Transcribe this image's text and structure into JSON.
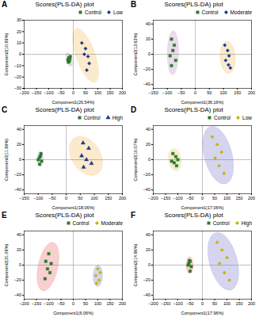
{
  "chart_data": [
    {
      "type": "scatter",
      "title": "Scores(PLS-DA) plot",
      "annotations": [
        "A"
      ],
      "xlabel": "Component1(26.54%)",
      "ylabel": "Component2(10.69%)",
      "xlim": [
        -200,
        200
      ],
      "ylim": [
        -30,
        30
      ],
      "xticks": [
        -200,
        -150,
        -100,
        -50,
        0,
        50,
        100,
        150,
        200
      ],
      "yticks": [
        -30,
        -20,
        -10,
        0,
        10,
        20,
        30
      ],
      "hlines": [
        0
      ],
      "vlines": [
        0
      ],
      "legend": "upper right",
      "grid": false,
      "series": [
        {
          "name": "Control",
          "color": "#2d7a2d",
          "marker": "square",
          "points": [
            [
              -18,
              -3
            ],
            [
              -22,
              -5
            ],
            [
              -16,
              -6
            ],
            [
              -20,
              -7
            ],
            [
              -14,
              -4
            ],
            [
              -12,
              -2
            ]
          ],
          "ellipse": {
            "cx": -17,
            "cy": -4.5,
            "width": 28,
            "height": 10,
            "angle": -15,
            "color": "#c8a0d0"
          }
        },
        {
          "name": "Low",
          "color": "#1a3a8a",
          "marker": "diamond",
          "points": [
            [
              35,
              10
            ],
            [
              50,
              5
            ],
            [
              60,
              -2
            ],
            [
              45,
              0
            ],
            [
              65,
              -8
            ],
            [
              55,
              -14
            ]
          ],
          "ellipse": {
            "cx": 50,
            "cy": -1,
            "width": 110,
            "height": 35,
            "angle": -18,
            "color": "#f5c87a"
          }
        }
      ]
    },
    {
      "type": "scatter",
      "title": "Scores(PLS-DA) plot",
      "annotations": [
        "B"
      ],
      "xlabel": "Component1(36.16%)",
      "ylabel": "Component2(13.63%)",
      "xlim": [
        -150,
        200
      ],
      "ylim": [
        -45,
        45
      ],
      "xticks": [
        -150,
        -100,
        -50,
        0,
        50,
        100,
        150,
        200
      ],
      "yticks": [
        -40,
        -20,
        0,
        20,
        40
      ],
      "hlines": [
        0
      ],
      "vlines": [
        0
      ],
      "legend": "upper right",
      "grid": false,
      "series": [
        {
          "name": "Control",
          "color": "#2d7a2d",
          "marker": "square",
          "points": [
            [
              -85,
              20
            ],
            [
              -75,
              12
            ],
            [
              -80,
              5
            ],
            [
              -90,
              -2
            ],
            [
              -70,
              -8
            ],
            [
              -85,
              -15
            ]
          ],
          "ellipse": {
            "cx": -80,
            "cy": 2,
            "width": 40,
            "height": 58,
            "angle": -5,
            "color": "#c8a0d0"
          }
        },
        {
          "name": "Moderate",
          "color": "#1a3a8a",
          "marker": "diamond",
          "points": [
            [
              105,
              12
            ],
            [
              115,
              5
            ],
            [
              120,
              -2
            ],
            [
              108,
              -8
            ],
            [
              118,
              -14
            ],
            [
              125,
              -18
            ]
          ],
          "ellipse": {
            "cx": 115,
            "cy": -4,
            "width": 55,
            "height": 42,
            "angle": -12,
            "color": "#f5c87a"
          }
        }
      ]
    },
    {
      "type": "scatter",
      "title": "Scores(PLS-DA) plot",
      "annotations": [
        "C"
      ],
      "xlabel": "Component1(18.06%)",
      "ylabel": "Component2(11.96%)",
      "xlim": [
        -150,
        200
      ],
      "ylim": [
        -45,
        45
      ],
      "xticks": [
        -150,
        -100,
        -50,
        0,
        50,
        100,
        150,
        200
      ],
      "yticks": [
        -40,
        -20,
        0,
        20,
        40
      ],
      "hlines": [
        0
      ],
      "vlines": [
        0
      ],
      "legend": "upper right",
      "grid": false,
      "series": [
        {
          "name": "Control",
          "color": "#2d7a2d",
          "marker": "square",
          "points": [
            [
              -90,
              8
            ],
            [
              -95,
              3
            ],
            [
              -100,
              0
            ],
            [
              -88,
              -2
            ],
            [
              -95,
              -6
            ],
            [
              -92,
              5
            ]
          ],
          "ellipse": {
            "cx": -93,
            "cy": 1,
            "width": 22,
            "height": 20,
            "angle": 0,
            "color": "#c8a0d0"
          }
        },
        {
          "name": "High",
          "color": "#1a3a8a",
          "marker": "triangle",
          "points": [
            [
              60,
              22
            ],
            [
              80,
              15
            ],
            [
              55,
              5
            ],
            [
              72,
              0
            ],
            [
              90,
              -5
            ],
            [
              62,
              -10
            ]
          ],
          "ellipse": {
            "cx": 70,
            "cy": 5,
            "width": 120,
            "height": 48,
            "angle": -10,
            "color": "#f5c87a"
          }
        }
      ]
    },
    {
      "type": "scatter",
      "title": "Scores(PLS-DA) plot",
      "annotations": [
        "D"
      ],
      "xlabel": "Component1(17.06%)",
      "ylabel": "Component2(10.07%)",
      "xlim": [
        -200,
        200
      ],
      "ylim": [
        -45,
        45
      ],
      "xticks": [
        -200,
        -150,
        -100,
        -50,
        0,
        50,
        100,
        150,
        200
      ],
      "yticks": [
        -40,
        -20,
        0,
        20,
        40
      ],
      "hlines": [
        0
      ],
      "vlines": [
        0
      ],
      "legend": "upper right",
      "grid": false,
      "series": [
        {
          "name": "Control",
          "color": "#2d7a2d",
          "marker": "square",
          "points": [
            [
              -120,
              8
            ],
            [
              -108,
              4
            ],
            [
              -100,
              0
            ],
            [
              -115,
              -4
            ],
            [
              -105,
              -8
            ],
            [
              -125,
              -2
            ]
          ],
          "ellipse": {
            "cx": -112,
            "cy": 0,
            "width": 52,
            "height": 28,
            "angle": -8,
            "color": "#e0d070"
          }
        },
        {
          "name": "Low",
          "color": "#c8b400",
          "marker": "diamond",
          "points": [
            [
              40,
              30
            ],
            [
              60,
              20
            ],
            [
              78,
              10
            ],
            [
              52,
              2
            ],
            [
              68,
              -8
            ],
            [
              88,
              -18
            ]
          ],
          "ellipse": {
            "cx": 64,
            "cy": 6,
            "width": 130,
            "height": 68,
            "angle": -18,
            "color": "#9090d8"
          }
        }
      ]
    },
    {
      "type": "scatter",
      "title": "Scores(PLS-DA) plot",
      "annotations": [
        "E"
      ],
      "xlabel": "Component1(6.06%)",
      "ylabel": "Component2(31.09%)",
      "xlim": [
        -200,
        200
      ],
      "ylim": [
        -45,
        45
      ],
      "xticks": [
        -200,
        -150,
        -100,
        -50,
        0,
        50,
        100,
        150,
        200
      ],
      "yticks": [
        -40,
        -20,
        0,
        20,
        40
      ],
      "hlines": [
        0
      ],
      "vlines": [
        0
      ],
      "legend": "upper right",
      "grid": false,
      "series": [
        {
          "name": "Control",
          "color": "#2d7a2d",
          "marker": "square",
          "points": [
            [
              -100,
              15
            ],
            [
              -112,
              5
            ],
            [
              -90,
              2
            ],
            [
              -105,
              -5
            ],
            [
              -95,
              -10
            ],
            [
              -115,
              -18
            ]
          ],
          "ellipse": {
            "cx": -103,
            "cy": -2,
            "width": 55,
            "height": 95,
            "angle": -65,
            "color": "#f08080"
          }
        },
        {
          "name": "Moderate",
          "color": "#c8b400",
          "marker": "diamond",
          "points": [
            [
              100,
              -5
            ],
            [
              110,
              -10
            ],
            [
              92,
              -14
            ],
            [
              105,
              -20
            ],
            [
              95,
              -24
            ]
          ],
          "ellipse": {
            "cx": 100,
            "cy": -14,
            "width": 38,
            "height": 28,
            "angle": 5,
            "color": "#9090d8"
          }
        }
      ]
    },
    {
      "type": "scatter",
      "title": "Scores(PLS-DA) plot",
      "annotations": [
        "F"
      ],
      "xlabel": "Component1(17.96%)",
      "ylabel": "Component2(14.96%)",
      "xlim": [
        -200,
        200
      ],
      "ylim": [
        -45,
        45
      ],
      "xticks": [
        -200,
        -150,
        -100,
        -50,
        0,
        50,
        100,
        150,
        200
      ],
      "yticks": [
        -40,
        -20,
        0,
        20,
        40
      ],
      "hlines": [
        0
      ],
      "vlines": [
        0
      ],
      "legend": "upper right",
      "grid": false,
      "series": [
        {
          "name": "Control",
          "color": "#2d7a2d",
          "marker": "square",
          "points": [
            [
              -50,
              5
            ],
            [
              -55,
              2
            ],
            [
              -45,
              -2
            ],
            [
              -58,
              0
            ],
            [
              -50,
              -8
            ],
            [
              -53,
              6
            ]
          ],
          "ellipse": {
            "cx": -52,
            "cy": 0,
            "width": 28,
            "height": 22,
            "angle": 0,
            "color": "#f08080"
          }
        },
        {
          "name": "High",
          "color": "#c8b400",
          "marker": "diamond",
          "points": [
            [
              60,
              30
            ],
            [
              80,
              20
            ],
            [
              100,
              10
            ],
            [
              70,
              2
            ],
            [
              90,
              -10
            ],
            [
              110,
              -20
            ]
          ],
          "ellipse": {
            "cx": 85,
            "cy": 5,
            "width": 130,
            "height": 68,
            "angle": -18,
            "color": "#9090d8"
          }
        }
      ]
    }
  ]
}
